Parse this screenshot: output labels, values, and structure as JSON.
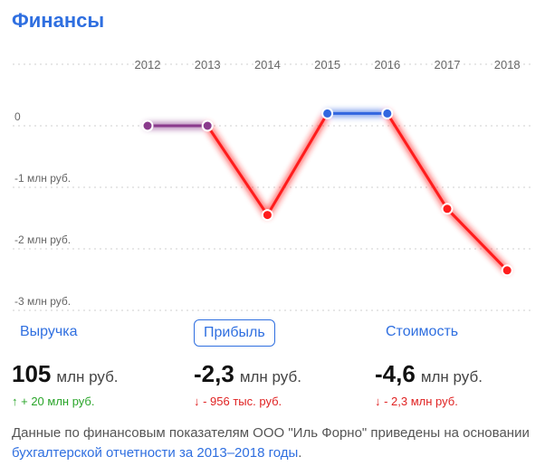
{
  "title": "Финансы",
  "chart_data": {
    "type": "line",
    "x": [
      "2012",
      "2013",
      "2014",
      "2015",
      "2016",
      "2017",
      "2018"
    ],
    "y": [
      0,
      0,
      -1.45,
      0.2,
      0.2,
      -1.35,
      -2.35
    ],
    "yticks": [
      {
        "value": 0,
        "label": "0"
      },
      {
        "value": -1,
        "label": "-1 млн руб."
      },
      {
        "value": -2,
        "label": "-2 млн руб."
      },
      {
        "value": -3,
        "label": "-3 млн руб."
      }
    ],
    "ylim": [
      -3.2,
      0.9
    ],
    "colors": {
      "neutral": "#8a3a8c",
      "positive": "#3266e0",
      "negative": "#ff1c1c",
      "grid": "#cfcfcf",
      "tick": "#666666"
    }
  },
  "tabs": {
    "revenue": "Выручка",
    "profit": "Прибыль",
    "value": "Стоимость"
  },
  "metrics": {
    "revenue": {
      "value": "105",
      "unit": "млн руб.",
      "change": "↑ + 20 млн руб."
    },
    "profit": {
      "value": "-2,3",
      "unit": "млн руб.",
      "change": "↓ - 956 тыс. руб."
    },
    "value": {
      "value": "-4,6",
      "unit": "млн руб.",
      "change": "↓ - 2,3 млн руб."
    }
  },
  "footnote": {
    "text": "Данные по финансовым показателям ООО \"Иль Форно\" приведены на основании ",
    "link": "бухгалтерской отчетности за 2013–2018 годы",
    "end": "."
  }
}
